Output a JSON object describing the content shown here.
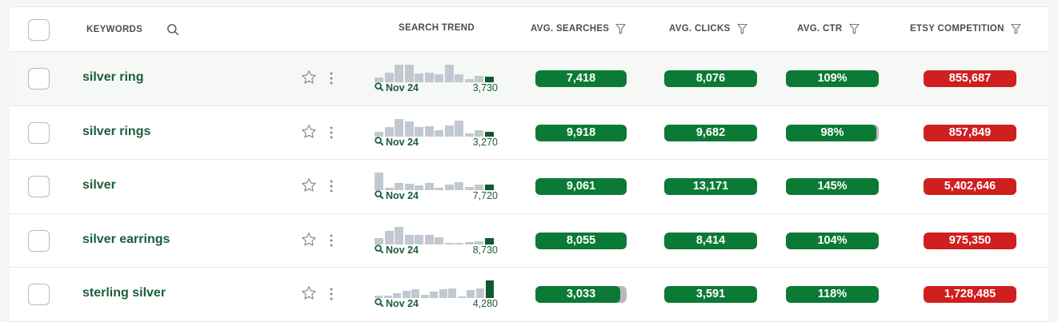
{
  "header": {
    "keywords": "KEYWORDS",
    "search_trend": "SEARCH TREND",
    "avg_searches": "AVG. SEARCHES",
    "avg_clicks": "AVG. CLICKS",
    "avg_ctr": "AVG. CTR",
    "etsy_competition": "ETSY COMPETITION"
  },
  "colors": {
    "keyword_text": "#1b5e3a",
    "metric_green": "#0b7a35",
    "competition_red": "#cf1f1f",
    "trend_bar": "#c2c8d0",
    "trend_current": "#0e5a2e"
  },
  "icons": {
    "search": "search-icon",
    "filter": "filter-icon",
    "star": "star-icon",
    "more": "kebab-menu-icon"
  },
  "rows": [
    {
      "keyword": "silver ring",
      "trend": {
        "bars": [
          0.25,
          0.55,
          1.0,
          1.0,
          0.5,
          0.55,
          0.45,
          1.0,
          0.45,
          0.2,
          0.35,
          0.3
        ],
        "month": "Nov 24",
        "value": "3,730"
      },
      "avg_searches": "7,418",
      "avg_searches_fill": 1.0,
      "avg_clicks": "8,076",
      "avg_clicks_fill": 1.0,
      "avg_ctr": "109%",
      "avg_ctr_fill": 1.0,
      "etsy_competition": "855,687"
    },
    {
      "keyword": "silver rings",
      "trend": {
        "bars": [
          0.25,
          0.55,
          1.0,
          0.85,
          0.55,
          0.6,
          0.35,
          0.65,
          0.9,
          0.2,
          0.35,
          0.2
        ],
        "month": "Nov 24",
        "value": "3,270"
      },
      "avg_searches": "9,918",
      "avg_searches_fill": 1.0,
      "avg_clicks": "9,682",
      "avg_clicks_fill": 1.0,
      "avg_ctr": "98%",
      "avg_ctr_fill": 0.97,
      "etsy_competition": "857,849"
    },
    {
      "keyword": "silver",
      "trend": {
        "bars": [
          1.0,
          0.15,
          0.4,
          0.35,
          0.25,
          0.4,
          0.15,
          0.3,
          0.45,
          0.2,
          0.3,
          0.3
        ],
        "month": "Nov 24",
        "value": "7,720"
      },
      "avg_searches": "9,061",
      "avg_searches_fill": 1.0,
      "avg_clicks": "13,171",
      "avg_clicks_fill": 1.0,
      "avg_ctr": "145%",
      "avg_ctr_fill": 1.0,
      "etsy_competition": "5,402,646"
    },
    {
      "keyword": "silver earrings",
      "trend": {
        "bars": [
          0.35,
          0.75,
          1.0,
          0.55,
          0.55,
          0.55,
          0.4,
          0.1,
          0.1,
          0.15,
          0.2,
          0.35
        ],
        "month": "Nov 24",
        "value": "8,730"
      },
      "avg_searches": "8,055",
      "avg_searches_fill": 1.0,
      "avg_clicks": "8,414",
      "avg_clicks_fill": 1.0,
      "avg_ctr": "104%",
      "avg_ctr_fill": 1.0,
      "etsy_competition": "975,350"
    },
    {
      "keyword": "sterling silver",
      "trend": {
        "bars": [
          0.12,
          0.12,
          0.25,
          0.4,
          0.5,
          0.2,
          0.35,
          0.5,
          0.55,
          0.1,
          0.45,
          0.55,
          1.0
        ],
        "month": "Nov 24",
        "value": "4,280"
      },
      "avg_searches": "3,033",
      "avg_searches_fill": 0.93,
      "avg_clicks": "3,591",
      "avg_clicks_fill": 1.0,
      "avg_ctr": "118%",
      "avg_ctr_fill": 1.0,
      "etsy_competition": "1,728,485"
    }
  ]
}
